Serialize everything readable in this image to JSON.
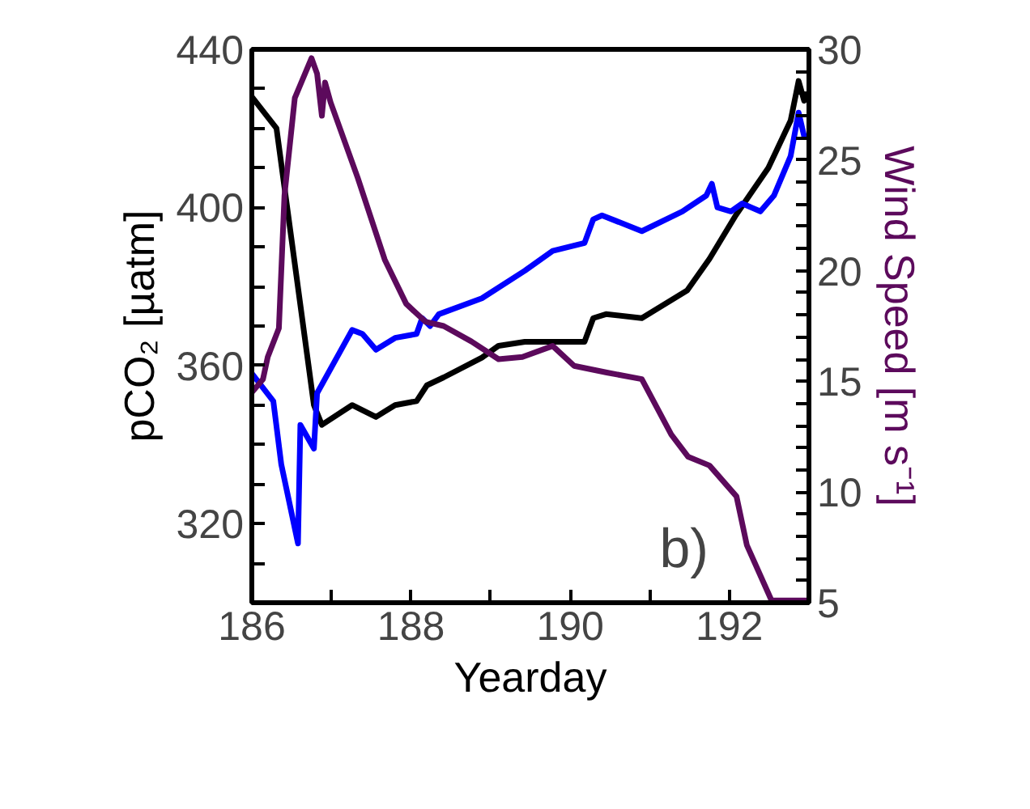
{
  "chart_data": {
    "type": "line",
    "xlabel": "Yearday",
    "ylabel": "pCO₂ [µatm]",
    "y2label": "Wind Speed [m s⁻¹]",
    "xlim": [
      186,
      193
    ],
    "xticks": [
      186,
      {
        "value": 187,
        "label": null
      },
      188,
      {
        "value": 189,
        "label": null
      },
      190,
      {
        "value": 191,
        "label": null
      },
      192,
      {
        "value": 193,
        "label": null
      }
    ],
    "ylim": [
      300,
      440
    ],
    "yticks": [
      {
        "value": 300,
        "label": null
      },
      {
        "value": 310,
        "label": null
      },
      320,
      {
        "value": 330,
        "label": null
      },
      {
        "value": 340,
        "label": null
      },
      {
        "value": 350,
        "label": null
      },
      360,
      {
        "value": 370,
        "label": null
      },
      {
        "value": 380,
        "label": null
      },
      {
        "value": 390,
        "label": null
      },
      400,
      {
        "value": 410,
        "label": null
      },
      {
        "value": 420,
        "label": null
      },
      {
        "value": 430,
        "label": null
      },
      440
    ],
    "y2lim": [
      5,
      30
    ],
    "y2ticks": [
      5,
      {
        "value": 6,
        "label": null
      },
      {
        "value": 7,
        "label": null
      },
      {
        "value": 8,
        "label": null
      },
      {
        "value": 9,
        "label": null
      },
      10,
      {
        "value": 11,
        "label": null
      },
      {
        "value": 12,
        "label": null
      },
      {
        "value": 13,
        "label": null
      },
      {
        "value": 14,
        "label": null
      },
      15,
      {
        "value": 16,
        "label": null
      },
      {
        "value": 17,
        "label": null
      },
      {
        "value": 18,
        "label": null
      },
      {
        "value": 19,
        "label": null
      },
      20,
      {
        "value": 21,
        "label": null
      },
      {
        "value": 22,
        "label": null
      },
      {
        "value": 23,
        "label": null
      },
      {
        "value": 24,
        "label": null
      },
      25,
      {
        "value": 26,
        "label": null
      },
      {
        "value": 27,
        "label": null
      },
      {
        "value": 28,
        "label": null
      },
      {
        "value": 29,
        "label": null
      },
      30
    ],
    "grid": false,
    "marker": "none",
    "line_style": "solid",
    "annotations": [
      "b)"
    ],
    "series": [
      {
        "color": "#000000",
        "x": [
          186,
          186.31,
          186.78,
          186.88,
          187.26,
          187.56,
          187.8,
          188.07,
          188.2,
          188.41,
          188.89,
          189.1,
          189.43,
          189.78,
          190.18,
          190.29,
          190.45,
          190.9,
          191.47,
          191.75,
          192.08,
          192.49,
          192.77,
          192.87,
          192.94,
          192.97
        ],
        "values": [
          428,
          420,
          350,
          345,
          350,
          347,
          350,
          351,
          355,
          357,
          362,
          365,
          366,
          366,
          366,
          372,
          373,
          372,
          379,
          387,
          398,
          410,
          422,
          432,
          427,
          429
        ]
      },
      {
        "color": "#0000ff",
        "x": [
          186,
          186.27,
          186.37,
          186.58,
          186.61,
          186.78,
          186.82,
          187.26,
          187.39,
          187.56,
          187.8,
          188.07,
          188.14,
          188.24,
          188.35,
          188.89,
          189.43,
          189.78,
          190.18,
          190.29,
          190.4,
          190.9,
          191.41,
          191.71,
          191.78,
          191.85,
          192.02,
          192.16,
          192.39,
          192.56,
          192.77,
          192.87,
          192.94,
          192.97
        ],
        "values": [
          358,
          351,
          335,
          315,
          345,
          339,
          353,
          369,
          368,
          364,
          367,
          368,
          372,
          370,
          373,
          377,
          384,
          389,
          391,
          397,
          398,
          394,
          399,
          403,
          406,
          400,
          399,
          401,
          399,
          403,
          413,
          424,
          418,
          418
        ]
      },
      {
        "color": "#5c0a5c",
        "axis": "y2",
        "x": [
          186,
          186.14,
          186.2,
          186.34,
          186.41,
          186.54,
          186.75,
          186.82,
          186.88,
          186.92,
          186.99,
          187.33,
          187.67,
          187.94,
          188.18,
          188.41,
          188.76,
          189.1,
          189.4,
          189.78,
          190.05,
          190.46,
          190.9,
          191.27,
          191.48,
          191.75,
          192.09,
          192.22,
          192.53,
          192.97
        ],
        "values": [
          14.5,
          15.1,
          16.1,
          17.4,
          23.4,
          27.8,
          29.6,
          28.9,
          27.0,
          28.5,
          27.6,
          24.2,
          20.5,
          18.5,
          17.7,
          17.5,
          16.8,
          16.0,
          16.1,
          16.6,
          15.7,
          15.4,
          15.1,
          12.6,
          11.6,
          11.2,
          9.8,
          7.6,
          5.1,
          5.1
        ]
      }
    ]
  }
}
